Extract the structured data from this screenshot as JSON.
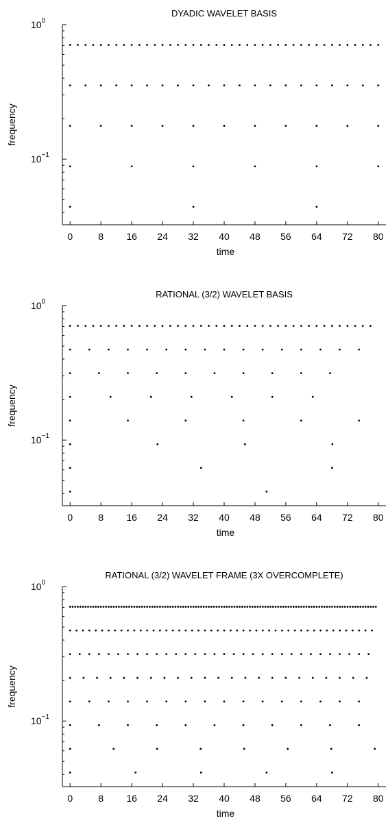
{
  "chart_data": [
    {
      "type": "scatter",
      "title": "DYADIC WAVELET BASIS",
      "xlabel": "time",
      "ylabel": "frequency",
      "xlim": [
        -2,
        82
      ],
      "ylim": [
        0.0325,
        1.0
      ],
      "yscale": "log",
      "xticks": [
        0,
        8,
        16,
        24,
        32,
        40,
        48,
        56,
        64,
        72,
        80
      ],
      "yticks": [
        {
          "value": 0.1,
          "base": "10",
          "exp": "−1"
        },
        {
          "value": 1.0,
          "base": "10",
          "exp": "0"
        }
      ],
      "grid": false,
      "series": [
        {
          "y": 0.7071,
          "x_start": 0,
          "x_step": 2,
          "x_end": 80
        },
        {
          "y": 0.3536,
          "x_start": 0,
          "x_step": 4,
          "x_end": 80
        },
        {
          "y": 0.1768,
          "x_start": 0,
          "x_step": 8,
          "x_end": 80
        },
        {
          "y": 0.0884,
          "x_start": 0,
          "x_step": 16,
          "x_end": 80
        },
        {
          "y": 0.0442,
          "x_start": 0,
          "x_step": 32,
          "x_end": 80
        }
      ]
    },
    {
      "type": "scatter",
      "title": "RATIONAL (3/2) WAVELET BASIS",
      "xlabel": "time",
      "ylabel": "frequency",
      "xlim": [
        -2,
        82
      ],
      "ylim": [
        0.0325,
        1.0
      ],
      "yscale": "log",
      "xticks": [
        0,
        8,
        16,
        24,
        32,
        40,
        48,
        56,
        64,
        72,
        80
      ],
      "yticks": [
        {
          "value": 0.1,
          "base": "10",
          "exp": "−1"
        },
        {
          "value": 1.0,
          "base": "10",
          "exp": "0"
        }
      ],
      "grid": false,
      "series": [
        {
          "y": 0.7071,
          "x_start": 0,
          "x_step": 2,
          "x_end": 78
        },
        {
          "y": 0.4714,
          "x_start": 0,
          "x_step": 5,
          "x_end": 76
        },
        {
          "y": 0.3143,
          "x_start": 0,
          "x_step": 7.5,
          "x_end": 74
        },
        {
          "y": 0.2095,
          "x_start": 0,
          "x_step": 10.5,
          "x_end": 72
        },
        {
          "y": 0.1397,
          "x_start": 0,
          "x_step": 15,
          "x_end": 76
        },
        {
          "y": 0.0931,
          "x_start": 0,
          "x_step": 22.7,
          "x_end": 70
        },
        {
          "y": 0.0621,
          "x_start": 0,
          "x_step": 34,
          "x_end": 70
        },
        {
          "y": 0.0414,
          "x_start": 0,
          "x_step": 51,
          "x_end": 70
        }
      ]
    },
    {
      "type": "scatter",
      "title": "RATIONAL (3/2) WAVELET FRAME (3X OVERCOMPLETE)",
      "xlabel": "time",
      "ylabel": "frequency",
      "xlim": [
        -2,
        82
      ],
      "ylim": [
        0.0325,
        1.0
      ],
      "yscale": "log",
      "xticks": [
        0,
        8,
        16,
        24,
        32,
        40,
        48,
        56,
        64,
        72,
        80
      ],
      "yticks": [
        {
          "value": 0.1,
          "base": "10",
          "exp": "−1"
        },
        {
          "value": 1.0,
          "base": "10",
          "exp": "0"
        }
      ],
      "grid": false,
      "series": [
        {
          "y": 0.7071,
          "x_start": 0,
          "x_step": 0.667,
          "x_end": 80
        },
        {
          "y": 0.4714,
          "x_start": 0,
          "x_step": 1.667,
          "x_end": 80
        },
        {
          "y": 0.3143,
          "x_start": 0,
          "x_step": 2.5,
          "x_end": 78
        },
        {
          "y": 0.2095,
          "x_start": 0,
          "x_step": 3.5,
          "x_end": 78
        },
        {
          "y": 0.1397,
          "x_start": 0,
          "x_step": 5,
          "x_end": 76
        },
        {
          "y": 0.0931,
          "x_start": 0,
          "x_step": 7.5,
          "x_end": 76
        },
        {
          "y": 0.0621,
          "x_start": 0,
          "x_step": 11.3,
          "x_end": 80
        },
        {
          "y": 0.0414,
          "x_start": 0,
          "x_step": 17,
          "x_end": 70
        }
      ]
    }
  ]
}
